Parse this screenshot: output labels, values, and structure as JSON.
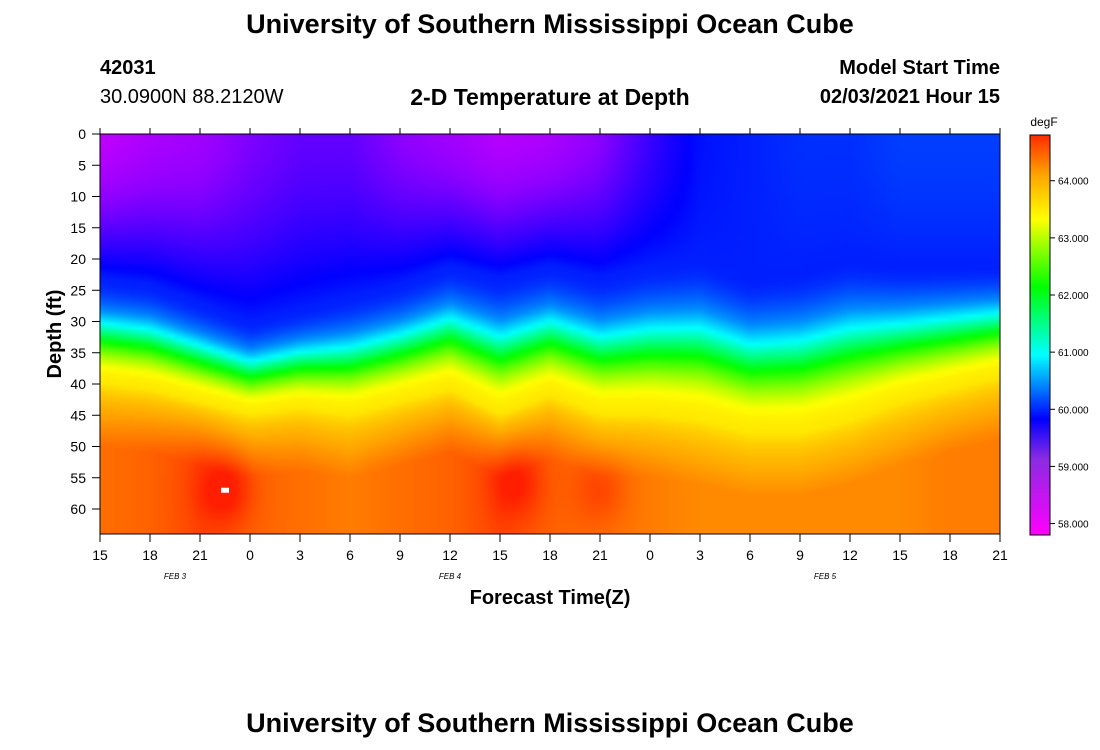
{
  "page": {
    "title": "University of Southern Mississippi Ocean Cube",
    "footer_title": "University of Southern Mississippi Ocean Cube",
    "station_id": "42031",
    "station_coords": "30.0900N 88.2120W",
    "model_label": "Model Start Time",
    "model_time": "02/03/2021 Hour 15"
  },
  "chart_data": {
    "type": "heatmap",
    "title": "2-D Temperature at Depth",
    "xlabel": "Forecast Time(Z)",
    "ylabel": "Depth (ft)",
    "x_range": [
      0,
      54
    ],
    "y_range": [
      0,
      64
    ],
    "x_ticks": [
      {
        "value": 0,
        "label": "15"
      },
      {
        "value": 3,
        "label": "18"
      },
      {
        "value": 6,
        "label": "21"
      },
      {
        "value": 9,
        "label": "0"
      },
      {
        "value": 12,
        "label": "3"
      },
      {
        "value": 15,
        "label": "6"
      },
      {
        "value": 18,
        "label": "9"
      },
      {
        "value": 21,
        "label": "12"
      },
      {
        "value": 24,
        "label": "15"
      },
      {
        "value": 27,
        "label": "18"
      },
      {
        "value": 30,
        "label": "21"
      },
      {
        "value": 33,
        "label": "0"
      },
      {
        "value": 36,
        "label": "3"
      },
      {
        "value": 39,
        "label": "6"
      },
      {
        "value": 42,
        "label": "9"
      },
      {
        "value": 45,
        "label": "12"
      },
      {
        "value": 48,
        "label": "15"
      },
      {
        "value": 51,
        "label": "18"
      },
      {
        "value": 54,
        "label": "21"
      }
    ],
    "y_ticks": [
      0,
      5,
      10,
      15,
      20,
      25,
      30,
      35,
      40,
      45,
      50,
      55,
      60
    ],
    "date_labels": [
      {
        "value": 4.5,
        "label": "FEB 3"
      },
      {
        "value": 21,
        "label": "FEB 4"
      },
      {
        "value": 43.5,
        "label": "FEB 5"
      }
    ],
    "colorbar": {
      "unit": "degF",
      "range": [
        57.8,
        64.8
      ],
      "ticks": [
        "58.000",
        "59.000",
        "60.000",
        "61.000",
        "62.000",
        "63.000",
        "64.000"
      ],
      "tick_values": [
        58,
        59,
        60,
        61,
        62,
        63,
        64
      ]
    },
    "time_hours": [
      0,
      3,
      6,
      9,
      12,
      15,
      18,
      21,
      24,
      27,
      30,
      33,
      36,
      39,
      42,
      45,
      48,
      51,
      54
    ],
    "thermocline_top_ft": [
      23,
      24,
      27,
      30,
      28,
      26,
      24,
      21,
      23,
      21,
      23,
      21,
      20,
      23,
      22,
      20,
      21,
      21,
      21
    ],
    "thermocline_bottom_ft": [
      40,
      41,
      43,
      45,
      44,
      45,
      43,
      41,
      45,
      42,
      45,
      45,
      46,
      48,
      48,
      46,
      43,
      41,
      39
    ],
    "surface_temp_degF": [
      58.4,
      58.6,
      58.7,
      59.0,
      59.2,
      59.2,
      58.9,
      58.7,
      58.5,
      58.6,
      58.9,
      59.5,
      60.0,
      60.1,
      60.2,
      60.2,
      60.3,
      60.3,
      60.3
    ],
    "bottom_temp_degF": [
      64.2,
      64.3,
      64.5,
      64.3,
      64.2,
      64.1,
      64.2,
      64.3,
      64.5,
      64.3,
      64.2,
      64.1,
      64.0,
      64.0,
      64.0,
      64.0,
      64.0,
      64.1,
      64.1
    ],
    "warm_spots": [
      {
        "hour": 7.5,
        "depth": 57,
        "temp": 64.8
      },
      {
        "hour": 25,
        "depth": 56,
        "temp": 64.7
      },
      {
        "hour": 30,
        "depth": 57,
        "temp": 64.6
      }
    ]
  }
}
